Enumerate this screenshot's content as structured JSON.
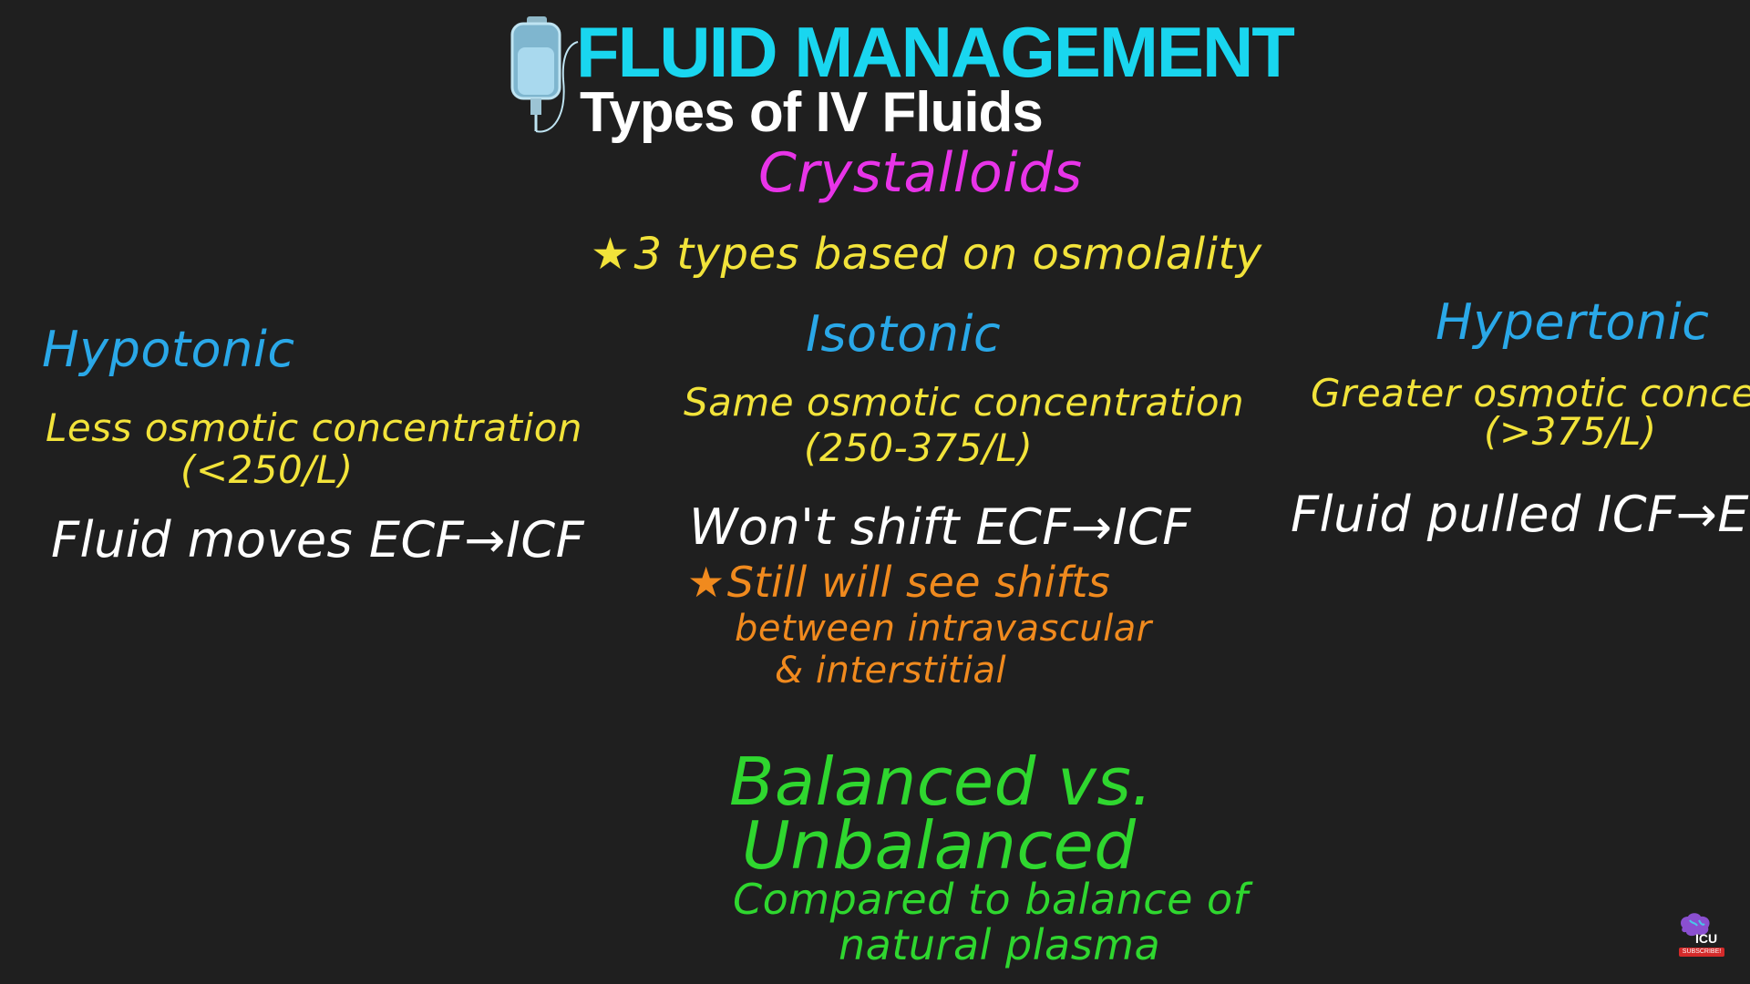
{
  "title": "FLUID MANAGEMENT",
  "subtitle": "Types of IV Fluids",
  "heading": "Crystalloids",
  "note": "3 types based on osmolality",
  "columns": {
    "hypotonic": {
      "label": "Hypotonic",
      "desc_line1": "Less osmotic concentration",
      "desc_line2": "(<250/L)",
      "effect": "Fluid moves ECF→ICF"
    },
    "isotonic": {
      "label": "Isotonic",
      "desc_line1": "Same osmotic concentration",
      "desc_line2": "(250-375/L)",
      "effect": "Won't shift ECF→ICF",
      "caveat_line1": "Still will see shifts",
      "caveat_line2": "between intravascular",
      "caveat_line3": "& interstitial"
    },
    "hypertonic": {
      "label": "Hypertonic",
      "desc_line1": "Greater osmotic concentrate",
      "desc_line2": "(>375/L)",
      "effect": "Fluid pulled ICF→ECF"
    }
  },
  "balanced": {
    "line1": "Balanced vs.",
    "line2": "Unbalanced",
    "line3": "Compared to balance of",
    "line4": "natural plasma"
  },
  "logo": {
    "text": "ICU",
    "subscribe": "SUBSCRIBE!"
  },
  "icons": [
    "iv-bag-icon",
    "star-icon",
    "brain-logo-icon"
  ],
  "colors": {
    "background": "#1f1f1f",
    "title": "#19d6ef",
    "heading": "#e834e8",
    "yellow": "#f2e33a",
    "blue": "#2aa8e8",
    "orange": "#f08a1e",
    "green": "#2fd72f"
  }
}
